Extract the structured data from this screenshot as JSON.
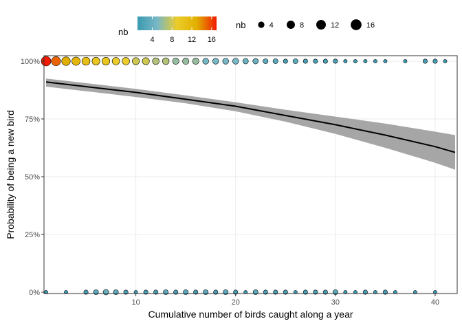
{
  "chart_data": {
    "type": "scatter",
    "xlabel": "Cumulative number of birds caught along a year",
    "ylabel": "Probability of being a new bird",
    "xlim": [
      1,
      42
    ],
    "ylim": [
      0,
      1
    ],
    "x_ticks": [
      10,
      20,
      30,
      40
    ],
    "y_ticks": [
      0,
      0.25,
      0.5,
      0.75,
      1.0
    ],
    "y_tick_labels": [
      "0%",
      "25%",
      "50%",
      "75%",
      "100%"
    ],
    "grid": true,
    "legend_position": "top",
    "color_legend": {
      "title": "nb",
      "min": 1,
      "max": 17,
      "ticks": [
        4,
        8,
        12,
        16
      ],
      "colors": [
        "#3b9ab2",
        "#78b7c5",
        "#ebcc2a",
        "#e1af00",
        "#f21a00"
      ]
    },
    "size_legend": {
      "title": "nb",
      "ticks": [
        4,
        8,
        12,
        16
      ]
    },
    "points_top": [
      {
        "x": 1,
        "nb": 17
      },
      {
        "x": 2,
        "nb": 15
      },
      {
        "x": 3,
        "nb": 13
      },
      {
        "x": 4,
        "nb": 12
      },
      {
        "x": 5,
        "nb": 11
      },
      {
        "x": 6,
        "nb": 10
      },
      {
        "x": 7,
        "nb": 10
      },
      {
        "x": 8,
        "nb": 9
      },
      {
        "x": 9,
        "nb": 9
      },
      {
        "x": 10,
        "nb": 8
      },
      {
        "x": 11,
        "nb": 8
      },
      {
        "x": 12,
        "nb": 7
      },
      {
        "x": 13,
        "nb": 7
      },
      {
        "x": 14,
        "nb": 6
      },
      {
        "x": 15,
        "nb": 6
      },
      {
        "x": 16,
        "nb": 6
      },
      {
        "x": 17,
        "nb": 5
      },
      {
        "x": 18,
        "nb": 5
      },
      {
        "x": 19,
        "nb": 5
      },
      {
        "x": 20,
        "nb": 5
      },
      {
        "x": 21,
        "nb": 4
      },
      {
        "x": 22,
        "nb": 4
      },
      {
        "x": 23,
        "nb": 3
      },
      {
        "x": 24,
        "nb": 3
      },
      {
        "x": 25,
        "nb": 2
      },
      {
        "x": 26,
        "nb": 3
      },
      {
        "x": 27,
        "nb": 2
      },
      {
        "x": 28,
        "nb": 2
      },
      {
        "x": 29,
        "nb": 2
      },
      {
        "x": 30,
        "nb": 2
      },
      {
        "x": 31,
        "nb": 1
      },
      {
        "x": 32,
        "nb": 1
      },
      {
        "x": 33,
        "nb": 1
      },
      {
        "x": 34,
        "nb": 1
      },
      {
        "x": 35,
        "nb": 1
      },
      {
        "x": 37,
        "nb": 1
      },
      {
        "x": 39,
        "nb": 2
      },
      {
        "x": 40,
        "nb": 2
      },
      {
        "x": 41,
        "nb": 1
      }
    ],
    "points_bottom": [
      {
        "x": 1,
        "nb": 1
      },
      {
        "x": 3,
        "nb": 1
      },
      {
        "x": 5,
        "nb": 2
      },
      {
        "x": 6,
        "nb": 3
      },
      {
        "x": 7,
        "nb": 4
      },
      {
        "x": 8,
        "nb": 3
      },
      {
        "x": 9,
        "nb": 2
      },
      {
        "x": 10,
        "nb": 1
      },
      {
        "x": 11,
        "nb": 2
      },
      {
        "x": 12,
        "nb": 2
      },
      {
        "x": 13,
        "nb": 3
      },
      {
        "x": 14,
        "nb": 2
      },
      {
        "x": 15,
        "nb": 3
      },
      {
        "x": 16,
        "nb": 2
      },
      {
        "x": 17,
        "nb": 3
      },
      {
        "x": 18,
        "nb": 2
      },
      {
        "x": 19,
        "nb": 3
      },
      {
        "x": 20,
        "nb": 2
      },
      {
        "x": 21,
        "nb": 1
      },
      {
        "x": 22,
        "nb": 3
      },
      {
        "x": 23,
        "nb": 2
      },
      {
        "x": 24,
        "nb": 2
      },
      {
        "x": 25,
        "nb": 2
      },
      {
        "x": 26,
        "nb": 1
      },
      {
        "x": 27,
        "nb": 2
      },
      {
        "x": 28,
        "nb": 2
      },
      {
        "x": 29,
        "nb": 2
      },
      {
        "x": 30,
        "nb": 3
      },
      {
        "x": 31,
        "nb": 1
      },
      {
        "x": 32,
        "nb": 1
      },
      {
        "x": 33,
        "nb": 2
      },
      {
        "x": 34,
        "nb": 1
      },
      {
        "x": 35,
        "nb": 2
      },
      {
        "x": 36,
        "nb": 1
      },
      {
        "x": 38,
        "nb": 1
      },
      {
        "x": 40,
        "nb": 1
      }
    ],
    "fit": {
      "x": [
        1,
        5,
        10,
        15,
        20,
        25,
        30,
        35,
        40,
        42
      ],
      "y": [
        0.91,
        0.89,
        0.865,
        0.835,
        0.805,
        0.765,
        0.725,
        0.68,
        0.63,
        0.605
      ],
      "lower": [
        0.89,
        0.87,
        0.845,
        0.818,
        0.783,
        0.738,
        0.685,
        0.625,
        0.56,
        0.53
      ],
      "upper": [
        0.925,
        0.905,
        0.88,
        0.852,
        0.822,
        0.79,
        0.76,
        0.73,
        0.695,
        0.68
      ]
    }
  }
}
